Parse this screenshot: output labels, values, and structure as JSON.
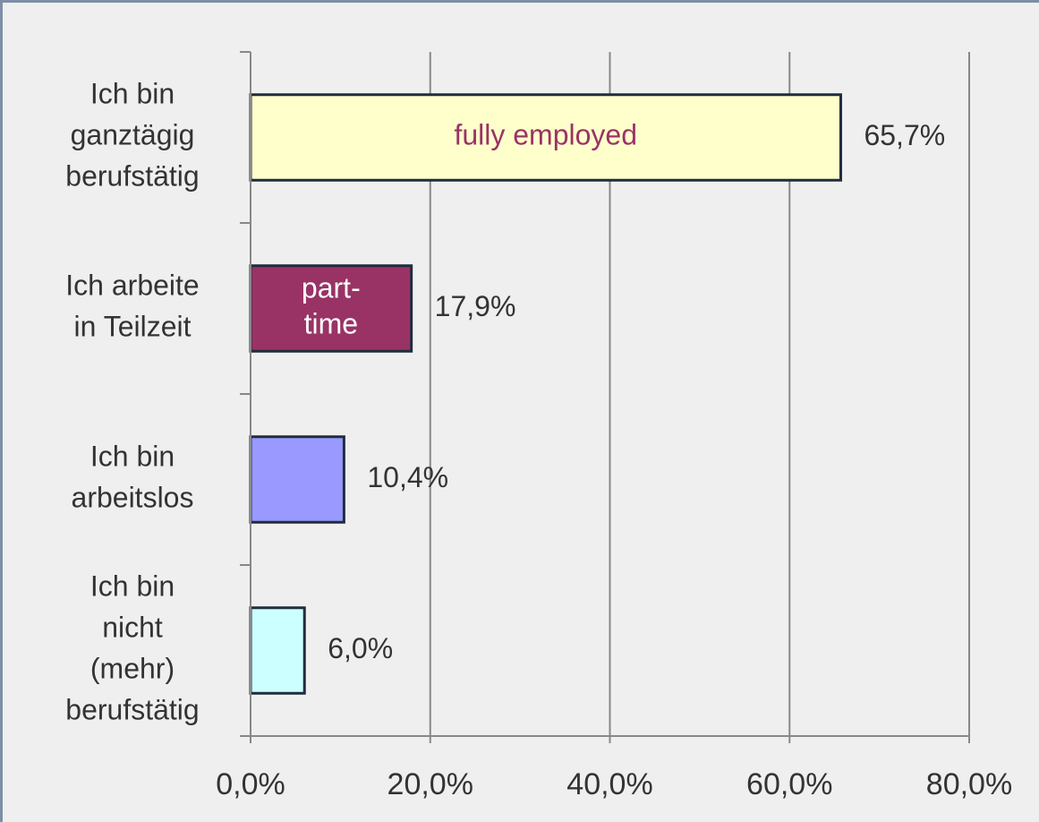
{
  "chart_data": {
    "type": "barh",
    "categories": [
      [
        "Ich bin",
        "ganztägig",
        "berufstätig"
      ],
      [
        "Ich arbeite",
        "in Teilzeit"
      ],
      [
        "Ich bin",
        "arbeitslos"
      ],
      [
        "Ich bin",
        "nicht",
        "(mehr)",
        "berufstätig"
      ]
    ],
    "values": [
      65.7,
      17.9,
      10.4,
      6.0
    ],
    "value_labels": [
      "65,7%",
      "17,9%",
      "10,4%",
      "6,0%"
    ],
    "colors": [
      "#ffffcc",
      "#993366",
      "#9999ff",
      "#ccffff"
    ],
    "bar_labels": [
      [
        "fully employed"
      ],
      [
        "part-",
        "time"
      ],
      null,
      null
    ],
    "bar_label_colors": [
      "#993366",
      "#ffffff",
      null,
      null
    ],
    "xlim": [
      0,
      80
    ],
    "xticks": [
      {
        "value": 0,
        "label": "0,0%"
      },
      {
        "value": 20,
        "label": "20,0%"
      },
      {
        "value": 40,
        "label": "40,0%"
      },
      {
        "value": 60,
        "label": "60,0%"
      },
      {
        "value": 80,
        "label": "80,0%"
      }
    ],
    "grid": true
  }
}
